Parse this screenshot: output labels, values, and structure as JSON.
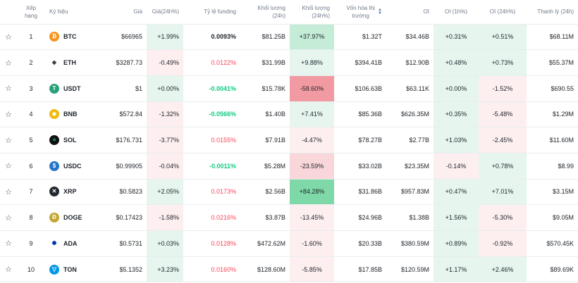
{
  "headers": {
    "rank": "Xếp hạng",
    "symbol": "Ký hiệu",
    "price": "Giá",
    "change": "Giá(24h%)",
    "funding": "Tỷ lệ funding",
    "volume": "Khối lượng (24h)",
    "volume_change": "Khối lượng (24h%)",
    "market_cap_line1": "Vốn hóa thị",
    "market_cap_line2": "trường",
    "oi": "OI",
    "oi_change_1h": "OI (1h%)",
    "oi_change_24h": "OI (24h%)",
    "liquidation": "Thanh lý (24h)"
  },
  "colors": {
    "green_light": "#e6f6ee",
    "green_mid": "#c4ecd6",
    "green_strong": "#7ed8a7",
    "red_light": "#fdeff0",
    "red_mid": "#f8d6d9",
    "red_strong": "#f29aa1"
  },
  "rows": [
    {
      "rank": "1",
      "symbol": "BTC",
      "icon": "btc-icon",
      "price": "$66965",
      "change": "+1.99%",
      "change_bg": "green_light",
      "funding": "0.0093%",
      "funding_style": "fund-bold",
      "volume": "$81.25B",
      "vol_change": "+37.97%",
      "vol_change_bg": "green_mid",
      "market_cap": "$1.32T",
      "oi": "$34.46B",
      "oi_1h": "+0.31%",
      "oi_1h_bg": "green_light",
      "oi_24h": "+0.51%",
      "oi_24h_bg": "green_light",
      "liquidation": "$68.11M"
    },
    {
      "rank": "2",
      "symbol": "ETH",
      "icon": "eth-icon",
      "price": "$3287.73",
      "change": "-0.49%",
      "change_bg": "red_light",
      "funding": "0.0122%",
      "funding_style": "fund-red",
      "volume": "$31.99B",
      "vol_change": "+9.88%",
      "vol_change_bg": "green_light",
      "market_cap": "$394.41B",
      "oi": "$12.90B",
      "oi_1h": "+0.48%",
      "oi_1h_bg": "green_light",
      "oi_24h": "+0.73%",
      "oi_24h_bg": "green_light",
      "liquidation": "$55.37M"
    },
    {
      "rank": "3",
      "symbol": "USDT",
      "icon": "usdt-icon",
      "price": "$1",
      "change": "+0.00%",
      "change_bg": "green_light",
      "funding": "-0.0041%",
      "funding_style": "fund-green",
      "volume": "$15.78K",
      "vol_change": "-58.60%",
      "vol_change_bg": "red_strong",
      "market_cap": "$106.63B",
      "oi": "$63.11K",
      "oi_1h": "+0.00%",
      "oi_1h_bg": "green_light",
      "oi_24h": "-1.52%",
      "oi_24h_bg": "red_light",
      "liquidation": "$690.55"
    },
    {
      "rank": "4",
      "symbol": "BNB",
      "icon": "bnb-icon",
      "price": "$572.84",
      "change": "-1.32%",
      "change_bg": "red_light",
      "funding": "-0.0566%",
      "funding_style": "fund-green",
      "volume": "$1.40B",
      "vol_change": "+7.41%",
      "vol_change_bg": "green_light",
      "market_cap": "$85.36B",
      "oi": "$626.35M",
      "oi_1h": "+0.35%",
      "oi_1h_bg": "green_light",
      "oi_24h": "-5.48%",
      "oi_24h_bg": "red_light",
      "liquidation": "$1.29M"
    },
    {
      "rank": "5",
      "symbol": "SOL",
      "icon": "sol-icon",
      "price": "$176.731",
      "change": "-3.77%",
      "change_bg": "red_light",
      "funding": "0.0155%",
      "funding_style": "fund-red",
      "volume": "$7.91B",
      "vol_change": "-4.47%",
      "vol_change_bg": "red_light",
      "market_cap": "$78.27B",
      "oi": "$2.77B",
      "oi_1h": "+1.03%",
      "oi_1h_bg": "green_light",
      "oi_24h": "-2.45%",
      "oi_24h_bg": "red_light",
      "liquidation": "$11.60M"
    },
    {
      "rank": "6",
      "symbol": "USDC",
      "icon": "usdc-icon",
      "price": "$0.99905",
      "change": "-0.04%",
      "change_bg": "red_light",
      "funding": "-0.0011%",
      "funding_style": "fund-green",
      "volume": "$5.28M",
      "vol_change": "-23.59%",
      "vol_change_bg": "red_mid",
      "market_cap": "$33.02B",
      "oi": "$23.35M",
      "oi_1h": "-0.14%",
      "oi_1h_bg": "red_light",
      "oi_24h": "+0.78%",
      "oi_24h_bg": "green_light",
      "liquidation": "$8.99"
    },
    {
      "rank": "7",
      "symbol": "XRP",
      "icon": "xrp-icon",
      "price": "$0.5823",
      "change": "+2.05%",
      "change_bg": "green_light",
      "funding": "0.0173%",
      "funding_style": "fund-red",
      "volume": "$2.56B",
      "vol_change": "+84.28%",
      "vol_change_bg": "green_strong",
      "market_cap": "$31.86B",
      "oi": "$957.83M",
      "oi_1h": "+0.47%",
      "oi_1h_bg": "green_light",
      "oi_24h": "+7.01%",
      "oi_24h_bg": "green_light",
      "liquidation": "$3.15M"
    },
    {
      "rank": "8",
      "symbol": "DOGE",
      "icon": "doge-icon",
      "price": "$0.17423",
      "change": "-1.58%",
      "change_bg": "red_light",
      "funding": "0.0216%",
      "funding_style": "fund-red",
      "volume": "$3.87B",
      "vol_change": "-13.45%",
      "vol_change_bg": "red_light",
      "market_cap": "$24.96B",
      "oi": "$1.38B",
      "oi_1h": "+1.56%",
      "oi_1h_bg": "green_light",
      "oi_24h": "-5.30%",
      "oi_24h_bg": "red_light",
      "liquidation": "$9.05M"
    },
    {
      "rank": "9",
      "symbol": "ADA",
      "icon": "ada-icon",
      "price": "$0.5731",
      "change": "+0.03%",
      "change_bg": "green_light",
      "funding": "0.0128%",
      "funding_style": "fund-red",
      "volume": "$472.62M",
      "vol_change": "-1.60%",
      "vol_change_bg": "red_light",
      "market_cap": "$20.33B",
      "oi": "$380.59M",
      "oi_1h": "+0.89%",
      "oi_1h_bg": "green_light",
      "oi_24h": "-0.92%",
      "oi_24h_bg": "red_light",
      "liquidation": "$570.45K"
    },
    {
      "rank": "10",
      "symbol": "TON",
      "icon": "ton-icon",
      "price": "$5.1352",
      "change": "+3.23%",
      "change_bg": "green_light",
      "funding": "0.0160%",
      "funding_style": "fund-red",
      "volume": "$128.60M",
      "vol_change": "-5.85%",
      "vol_change_bg": "red_light",
      "market_cap": "$17.85B",
      "oi": "$120.59M",
      "oi_1h": "+1.17%",
      "oi_1h_bg": "green_light",
      "oi_24h": "+2.46%",
      "oi_24h_bg": "green_light",
      "liquidation": "$89.69K"
    }
  ]
}
